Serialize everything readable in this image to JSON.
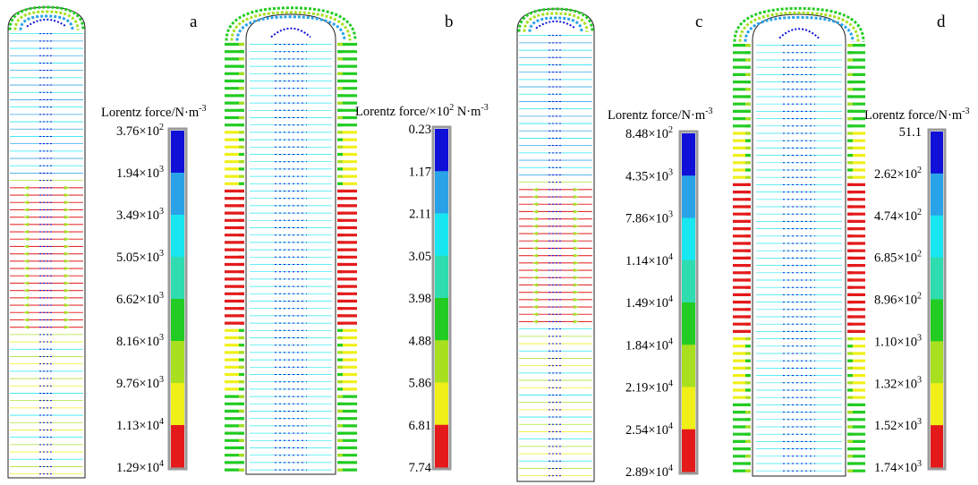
{
  "panels": [
    {
      "letter": "a",
      "colorbar_title": "Lorentz force/N·m",
      "colorbar_title_exp": "-3",
      "ticks": [
        {
          "m": "3.76",
          "e": "2"
        },
        {
          "m": "1.94",
          "e": "3"
        },
        {
          "m": "3.49",
          "e": "3"
        },
        {
          "m": "5.05",
          "e": "3"
        },
        {
          "m": "6.62",
          "e": "3"
        },
        {
          "m": "8.16",
          "e": "3"
        },
        {
          "m": "9.76",
          "e": "3"
        },
        {
          "m": "1.13",
          "e": "4"
        },
        {
          "m": "1.29",
          "e": "4"
        }
      ]
    },
    {
      "letter": "b",
      "colorbar_title": "Lorentz force/×10",
      "colorbar_title_exp": "2",
      "colorbar_title_unit": " N·m",
      "colorbar_title_unit_exp": "-3",
      "ticks": [
        {
          "m": "0.23",
          "e": ""
        },
        {
          "m": "1.17",
          "e": ""
        },
        {
          "m": "2.11",
          "e": ""
        },
        {
          "m": "3.05",
          "e": ""
        },
        {
          "m": "3.98",
          "e": ""
        },
        {
          "m": "4.88",
          "e": ""
        },
        {
          "m": "5.86",
          "e": ""
        },
        {
          "m": "6.81",
          "e": ""
        },
        {
          "m": "7.74",
          "e": ""
        }
      ]
    },
    {
      "letter": "c",
      "colorbar_title": "Lorentz force/N·m",
      "colorbar_title_exp": "-3",
      "ticks": [
        {
          "m": "8.48",
          "e": "2"
        },
        {
          "m": "4.35",
          "e": "3"
        },
        {
          "m": "7.86",
          "e": "3"
        },
        {
          "m": "1.14",
          "e": "4"
        },
        {
          "m": "1.49",
          "e": "4"
        },
        {
          "m": "1.84",
          "e": "4"
        },
        {
          "m": "2.19",
          "e": "4"
        },
        {
          "m": "2.54",
          "e": "4"
        },
        {
          "m": "2.89",
          "e": "4"
        }
      ]
    },
    {
      "letter": "d",
      "colorbar_title": "Lorentz force/N·m",
      "colorbar_title_exp": "-3",
      "ticks": [
        {
          "m": "51.1",
          "e": ""
        },
        {
          "m": "2.62",
          "e": "2"
        },
        {
          "m": "4.74",
          "e": "2"
        },
        {
          "m": "6.85",
          "e": "2"
        },
        {
          "m": "8.96",
          "e": "2"
        },
        {
          "m": "1.10",
          "e": "3"
        },
        {
          "m": "1.32",
          "e": "3"
        },
        {
          "m": "1.52",
          "e": "3"
        },
        {
          "m": "1.74",
          "e": "3"
        }
      ]
    }
  ],
  "colormap": [
    "#1010d8",
    "#2aa2e8",
    "#18e6f0",
    "#2edcb0",
    "#22cc22",
    "#a8e020",
    "#f0f018",
    "#e41a1a"
  ],
  "times_sign": "×",
  "base": "10"
}
